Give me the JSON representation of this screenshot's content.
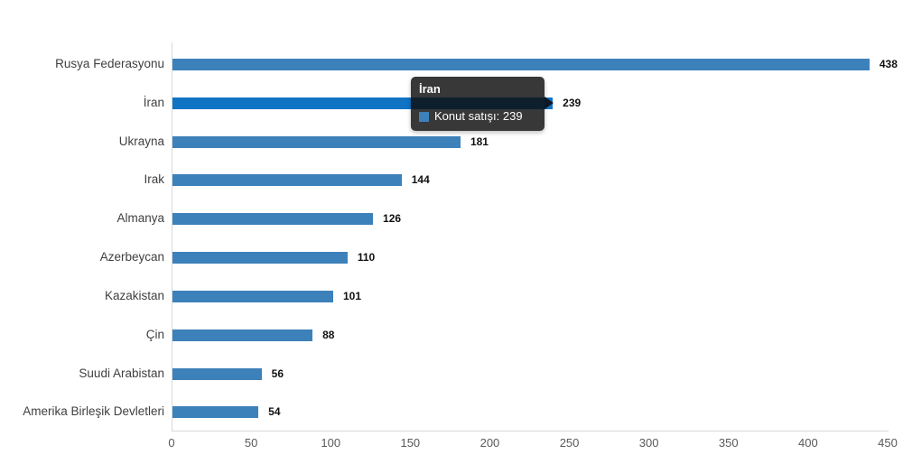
{
  "chart_data": {
    "type": "bar",
    "orientation": "horizontal",
    "title": "",
    "series_name": "Konut satışı",
    "categories": [
      "Rusya Federasyonu",
      "İran",
      "Ukrayna",
      "Irak",
      "Almanya",
      "Azerbeycan",
      "Kazakistan",
      "Çin",
      "Suudi Arabistan",
      "Amerika Birleşik Devletleri"
    ],
    "values": [
      438,
      239,
      181,
      144,
      126,
      110,
      101,
      88,
      56,
      54
    ],
    "xlabel": "",
    "ylabel": "",
    "xlim": [
      0,
      450
    ],
    "xticks": [
      0,
      50,
      100,
      150,
      200,
      250,
      300,
      350,
      400,
      450
    ],
    "grid": false,
    "legend_position": "none",
    "value_labels": true,
    "bar_color": "#3d81ba",
    "highlight_color": "#1173c4",
    "highlighted_category": "İran"
  },
  "tooltip": {
    "title": "İran",
    "series_label": "Konut satışı",
    "value": 239,
    "text": "Konut satışı: 239",
    "swatch_color": "#3d81ba"
  }
}
